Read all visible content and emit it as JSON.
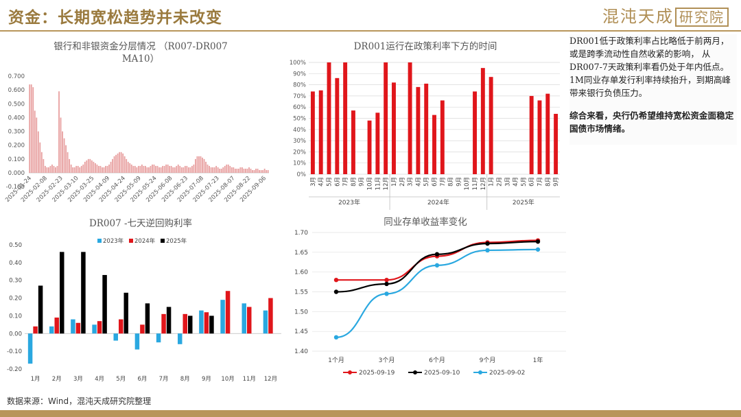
{
  "header": {
    "title": "资金：长期宽松趋势并未改变",
    "brand_main": "混沌天成",
    "brand_box": "研究院"
  },
  "sidebar_text": {
    "para1": "DR001低于政策利率占比略低于前两月，或是跨季流动性自然收紧的影响， 从DR007-7天政策利率看仍处于年内低点。1M同业存单发行利率持续抬升，到期高峰带来银行负债压力。",
    "para2": "综合来看，央行仍希望维持宽松资金面稳定国债市场情绪。"
  },
  "source": "数据来源：Wind，混沌天成研究院整理",
  "colors": {
    "accent": "#b8955a",
    "bar_red": "#e0161b",
    "pink": "#e8a0a0",
    "s2023": "#2aa8e0",
    "s2025": "#000000"
  },
  "chart_data": [
    {
      "type": "bar",
      "title_line1": "银行和非银资金分层情况 （R007-DR007",
      "title_line2": "MA10）",
      "ylim": [
        0,
        0.7
      ],
      "yticks": [
        "0.700",
        "0.600",
        "0.500",
        "0.400",
        "0.300",
        "0.200",
        "0.100",
        "0.000",
        "-0.100"
      ],
      "xticks": [
        "2025-01-24",
        "2025-02-08",
        "2025-02-23",
        "2025-03-10",
        "2025-03-25",
        "2025-04-09",
        "2025-04-24",
        "2025-05-09",
        "2025-05-24",
        "2025-06-08",
        "2025-06-23",
        "2025-07-08",
        "2025-07-23",
        "2025-08-07",
        "2025-08-22",
        "2025-09-06"
      ],
      "values": [
        0.64,
        0.64,
        0.62,
        0.45,
        0.4,
        0.3,
        0.22,
        0.15,
        0.1,
        0.05,
        0.04,
        0.04,
        0.05,
        0.06,
        0.05,
        0.04,
        0.05,
        0.59,
        0.4,
        0.3,
        0.25,
        0.2,
        0.15,
        0.1,
        0.06,
        0.04,
        0.04,
        0.05,
        0.05,
        0.04,
        0.05,
        0.06,
        0.08,
        0.09,
        0.1,
        0.1,
        0.09,
        0.08,
        0.07,
        0.06,
        0.05,
        0.05,
        0.04,
        0.04,
        0.05,
        0.05,
        0.06,
        0.08,
        0.1,
        0.12,
        0.13,
        0.14,
        0.15,
        0.15,
        0.14,
        0.12,
        0.1,
        0.08,
        0.07,
        0.06,
        0.05,
        0.05,
        0.04,
        0.05,
        0.05,
        0.06,
        0.05,
        0.05,
        0.04,
        0.04,
        0.05,
        0.06,
        0.06,
        0.05,
        0.05,
        0.04,
        0.04,
        0.05,
        0.05,
        0.06,
        0.06,
        0.05,
        0.05,
        0.04,
        0.04,
        0.05,
        0.06,
        0.05,
        0.04,
        0.04,
        0.05,
        0.05,
        0.04,
        0.04,
        0.05,
        0.06,
        0.1,
        0.12,
        0.12,
        0.12,
        0.11,
        0.1,
        0.08,
        0.06,
        0.05,
        0.04,
        0.04,
        0.04,
        0.05,
        0.04,
        0.03,
        0.03,
        0.04,
        0.05,
        0.06,
        0.06,
        0.05,
        0.04,
        0.04,
        0.03,
        0.03,
        0.03,
        0.04,
        0.04,
        0.03,
        0.03,
        0.03,
        0.04,
        0.03,
        0.02,
        0.02,
        0.03,
        0.03,
        0.02,
        0.02,
        0.02,
        0.03,
        0.02,
        0.02
      ]
    },
    {
      "type": "bar",
      "title": "DR001运行在政策利率下方的时间",
      "yticks": [
        "100%",
        "90%",
        "80%",
        "70%",
        "60%",
        "50%",
        "40%",
        "30%",
        "20%",
        "10%",
        "0%"
      ],
      "ylim": [
        0,
        100
      ],
      "categories": [
        "3月",
        "4月",
        "5月",
        "6月",
        "7月",
        "8月",
        "9月",
        "10月",
        "11月",
        "12月",
        "1月",
        "2月",
        "3月",
        "4月",
        "5月",
        "6月",
        "7月",
        "8月",
        "9月",
        "10月",
        "11月",
        "12月",
        "1月",
        "2月",
        "3月",
        "4月",
        "5月",
        "6月",
        "7月",
        "8月",
        "9月"
      ],
      "values": [
        74,
        75,
        100,
        86,
        100,
        57,
        0,
        48,
        55,
        100,
        82,
        0,
        100,
        78,
        81,
        53,
        66,
        0,
        0,
        0,
        74,
        95,
        87,
        0,
        0,
        0,
        0,
        70,
        66,
        72,
        54
      ],
      "groups": [
        {
          "label": "2023年",
          "start": 0,
          "end": 10
        },
        {
          "label": "2024年",
          "start": 10,
          "end": 22
        },
        {
          "label": "2025年",
          "start": 22,
          "end": 31
        }
      ]
    },
    {
      "type": "bar",
      "title": "DR007 -七天逆回购利率",
      "ylim": [
        -0.2,
        0.5
      ],
      "yticks": [
        "0.50",
        "0.40",
        "0.30",
        "0.20",
        "0.10",
        "0.00",
        "-0.10",
        "-0.20"
      ],
      "categories": [
        "1月",
        "2月",
        "3月",
        "4月",
        "5月",
        "6月",
        "7月",
        "8月",
        "9月",
        "10月",
        "11月",
        "12月"
      ],
      "series": [
        {
          "name": "2023年",
          "values": [
            -0.17,
            0.04,
            0.08,
            0.05,
            -0.04,
            -0.09,
            -0.05,
            -0.06,
            0.13,
            0.19,
            0.17,
            0.13
          ]
        },
        {
          "name": "2024年",
          "values": [
            0.04,
            0.09,
            0.06,
            0.07,
            0.08,
            0.05,
            0.11,
            0.11,
            0.12,
            0.24,
            0.15,
            0.2
          ]
        },
        {
          "name": "2025年",
          "values": [
            0.27,
            0.46,
            0.46,
            0.33,
            0.23,
            0.17,
            0.15,
            0.1,
            0.1,
            null,
            null,
            null
          ]
        }
      ]
    },
    {
      "type": "line",
      "title": "同业存单收益率变化",
      "ylim": [
        1.4,
        1.7
      ],
      "yticks": [
        "1.70",
        "1.65",
        "1.60",
        "1.55",
        "1.50",
        "1.45",
        "1.40"
      ],
      "categories": [
        "1个月",
        "3个月",
        "6个月",
        "9个月",
        "1年"
      ],
      "series": [
        {
          "name": "2025-09-19",
          "values": [
            1.58,
            1.58,
            1.64,
            1.675,
            1.68
          ]
        },
        {
          "name": "2025-09-10",
          "values": [
            1.55,
            1.57,
            1.645,
            1.672,
            1.677
          ]
        },
        {
          "name": "2025-09-02",
          "values": [
            1.435,
            1.545,
            1.617,
            1.655,
            1.657
          ]
        }
      ]
    }
  ]
}
